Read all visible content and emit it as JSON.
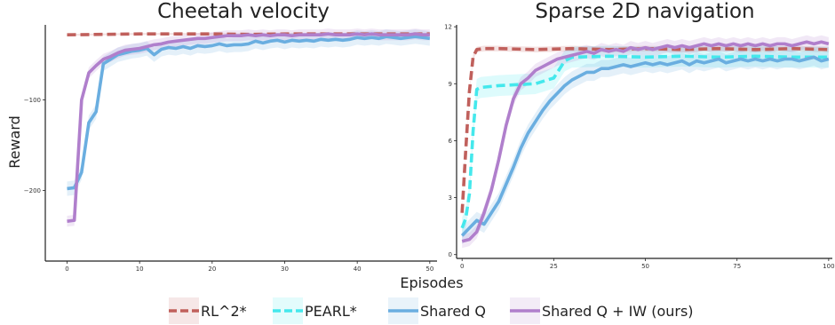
{
  "chart_data": [
    {
      "type": "line",
      "title": "Cheetah velocity",
      "xlabel": "",
      "ylabel": "Reward",
      "xlim": [
        -3,
        51
      ],
      "ylim": [
        -278,
        -17
      ],
      "xticks": [
        0,
        10,
        20,
        30,
        40,
        50
      ],
      "yticks": [
        -100,
        -200
      ],
      "ytick_labels": [
        "−100",
        "−200"
      ],
      "grid": false,
      "series": [
        {
          "name": "RL^2*",
          "color": "#c0605c",
          "dash": true,
          "x": [
            0,
            5,
            10,
            15,
            20,
            25,
            30,
            35,
            40,
            45,
            50
          ],
          "y": [
            -28,
            -27.5,
            -27,
            -27,
            -27,
            -27.5,
            -27,
            -27,
            -27,
            -27,
            -27
          ],
          "band": 1
        },
        {
          "name": "Shared Q",
          "color": "#6aaee0",
          "dash": false,
          "x": [
            0,
            1,
            2,
            3,
            4,
            5,
            6,
            7,
            8,
            9,
            10,
            11,
            12,
            13,
            14,
            15,
            16,
            17,
            18,
            19,
            20,
            21,
            22,
            23,
            24,
            25,
            26,
            27,
            28,
            29,
            30,
            31,
            32,
            33,
            34,
            35,
            36,
            37,
            38,
            39,
            40,
            41,
            42,
            43,
            44,
            45,
            46,
            47,
            48,
            49,
            50
          ],
          "y": [
            -198,
            -197,
            -180,
            -125,
            -113,
            -60,
            -55,
            -50,
            -48,
            -46,
            -45,
            -43,
            -50,
            -44,
            -42,
            -43,
            -41,
            -43,
            -40,
            -41,
            -40,
            -38,
            -40,
            -39,
            -39,
            -38,
            -35,
            -37,
            -35,
            -34,
            -36,
            -34,
            -35,
            -34,
            -35,
            -33,
            -34,
            -33,
            -34,
            -33,
            -31,
            -32,
            -31,
            -32,
            -30,
            -31,
            -32,
            -31,
            -30,
            -31,
            -32
          ],
          "band": 8
        },
        {
          "name": "Shared Q + IW (ours)",
          "color": "#b07fcc",
          "dash": false,
          "x": [
            0,
            1,
            2,
            3,
            4,
            5,
            6,
            7,
            8,
            9,
            10,
            11,
            12,
            13,
            14,
            15,
            16,
            17,
            18,
            19,
            20,
            21,
            22,
            23,
            24,
            25,
            26,
            27,
            28,
            29,
            30,
            31,
            32,
            33,
            34,
            35,
            36,
            37,
            38,
            39,
            40,
            41,
            42,
            43,
            44,
            45,
            46,
            47,
            48,
            49,
            50
          ],
          "y": [
            -234,
            -233,
            -100,
            -70,
            -62,
            -55,
            -52,
            -48,
            -45,
            -44,
            -43,
            -41,
            -39,
            -38,
            -36,
            -35,
            -34,
            -33,
            -32,
            -32,
            -31,
            -30,
            -29,
            -29,
            -29,
            -28,
            -29,
            -28,
            -29,
            -28,
            -28,
            -29,
            -28,
            -28,
            -28,
            -28,
            -27,
            -28,
            -28,
            -28,
            -27,
            -28,
            -27,
            -28,
            -28,
            -28,
            -28,
            -28,
            -27,
            -28,
            -28
          ],
          "band": 6
        }
      ]
    },
    {
      "type": "line",
      "title": "Sparse 2D navigation",
      "xlabel": "",
      "ylabel": "",
      "xlim": [
        -1.5,
        101
      ],
      "ylim": [
        -0.2,
        12.1
      ],
      "xticks": [
        0,
        25,
        50,
        75,
        100
      ],
      "yticks": [
        0,
        3,
        6,
        9,
        12
      ],
      "ytick_labels": [
        "0",
        "3",
        "6",
        "9",
        "12"
      ],
      "grid": false,
      "series": [
        {
          "name": "RL^2*",
          "color": "#c0605c",
          "dash": true,
          "x": [
            0,
            1,
            2,
            3,
            4,
            6,
            10,
            20,
            30,
            40,
            50,
            60,
            70,
            80,
            90,
            100
          ],
          "y": [
            2.2,
            5.5,
            8.6,
            10.4,
            10.8,
            10.85,
            10.85,
            10.8,
            10.85,
            10.8,
            10.85,
            10.8,
            10.85,
            10.8,
            10.85,
            10.8
          ],
          "band": 0.15
        },
        {
          "name": "PEARL*",
          "color": "#44e8ec",
          "dash": true,
          "x": [
            0,
            1,
            2,
            3,
            4,
            5,
            10,
            15,
            20,
            25,
            27,
            28,
            30,
            40,
            50,
            60,
            70,
            80,
            90,
            100
          ],
          "y": [
            1.4,
            1.9,
            3.2,
            6.5,
            8.7,
            8.8,
            8.9,
            8.95,
            9.0,
            9.3,
            9.9,
            10.2,
            10.4,
            10.45,
            10.4,
            10.45,
            10.4,
            10.45,
            10.4,
            10.4
          ],
          "band": 0.55
        },
        {
          "name": "Shared Q",
          "color": "#6aaee0",
          "dash": false,
          "x": [
            0,
            2,
            4,
            6,
            8,
            10,
            12,
            14,
            16,
            18,
            20,
            22,
            24,
            26,
            28,
            30,
            32,
            34,
            36,
            38,
            40,
            42,
            44,
            46,
            48,
            50,
            52,
            54,
            56,
            58,
            60,
            62,
            64,
            66,
            68,
            70,
            72,
            74,
            76,
            78,
            80,
            82,
            84,
            86,
            88,
            90,
            92,
            94,
            96,
            98,
            100
          ],
          "y": [
            1.0,
            1.4,
            1.8,
            1.6,
            2.2,
            2.8,
            3.7,
            4.6,
            5.6,
            6.4,
            7.0,
            7.6,
            8.1,
            8.5,
            8.9,
            9.2,
            9.4,
            9.6,
            9.6,
            9.8,
            9.8,
            9.9,
            10.0,
            9.9,
            10.0,
            10.1,
            10.0,
            10.1,
            10.0,
            10.1,
            10.2,
            10.0,
            10.2,
            10.1,
            10.2,
            10.3,
            10.1,
            10.2,
            10.3,
            10.2,
            10.3,
            10.2,
            10.3,
            10.2,
            10.3,
            10.3,
            10.2,
            10.3,
            10.4,
            10.2,
            10.3
          ],
          "band": 0.45
        },
        {
          "name": "Shared Q + IW (ours)",
          "color": "#b07fcc",
          "dash": false,
          "x": [
            0,
            2,
            4,
            6,
            8,
            10,
            12,
            14,
            16,
            18,
            20,
            22,
            24,
            26,
            28,
            30,
            32,
            34,
            36,
            38,
            40,
            42,
            44,
            46,
            48,
            50,
            52,
            54,
            56,
            58,
            60,
            62,
            64,
            66,
            68,
            70,
            72,
            74,
            76,
            78,
            80,
            82,
            84,
            86,
            88,
            90,
            92,
            94,
            96,
            98,
            100
          ],
          "y": [
            0.7,
            0.8,
            1.2,
            2.2,
            3.4,
            5.0,
            6.8,
            8.2,
            9.0,
            9.3,
            9.7,
            9.9,
            10.1,
            10.3,
            10.4,
            10.5,
            10.6,
            10.7,
            10.6,
            10.8,
            10.7,
            10.8,
            10.7,
            10.9,
            10.8,
            10.9,
            10.8,
            10.9,
            11.0,
            10.9,
            11.0,
            10.9,
            11.0,
            11.1,
            11.0,
            11.1,
            11.0,
            11.1,
            11.0,
            11.1,
            11.0,
            11.1,
            11.0,
            11.1,
            11.1,
            11.0,
            11.1,
            11.2,
            11.1,
            11.2,
            11.1
          ],
          "band": 0.35
        }
      ]
    }
  ],
  "figure": {
    "xlabel": "Episodes"
  },
  "legend": {
    "placement": "bottom-center",
    "items": [
      {
        "label": "RL^2*",
        "color": "#c0605c",
        "dash": true
      },
      {
        "label": "PEARL*",
        "color": "#44e8ec",
        "dash": true
      },
      {
        "label": "Shared Q",
        "color": "#6aaee0",
        "dash": false
      },
      {
        "label": "Shared Q + IW (ours)",
        "color": "#b07fcc",
        "dash": false
      }
    ]
  }
}
